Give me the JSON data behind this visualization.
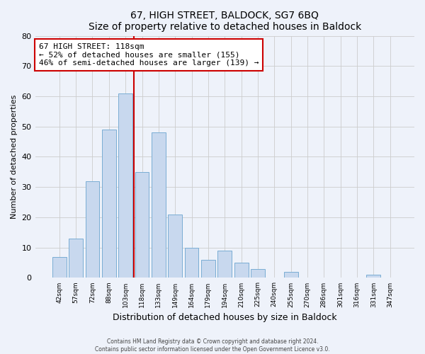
{
  "title": "67, HIGH STREET, BALDOCK, SG7 6BQ",
  "subtitle": "Size of property relative to detached houses in Baldock",
  "xlabel": "Distribution of detached houses by size in Baldock",
  "ylabel": "Number of detached properties",
  "bar_labels": [
    "42sqm",
    "57sqm",
    "72sqm",
    "88sqm",
    "103sqm",
    "118sqm",
    "133sqm",
    "149sqm",
    "164sqm",
    "179sqm",
    "194sqm",
    "210sqm",
    "225sqm",
    "240sqm",
    "255sqm",
    "270sqm",
    "286sqm",
    "301sqm",
    "316sqm",
    "331sqm",
    "347sqm"
  ],
  "bar_values": [
    7,
    13,
    32,
    49,
    61,
    35,
    48,
    21,
    10,
    6,
    9,
    5,
    3,
    0,
    2,
    0,
    0,
    0,
    0,
    1,
    0
  ],
  "bar_color": "#c8d8ee",
  "bar_edge_color": "#7aadd4",
  "vline_color": "#cc0000",
  "vline_x": 4.5,
  "annotation_text_line1": "67 HIGH STREET: 118sqm",
  "annotation_text_line2": "← 52% of detached houses are smaller (155)",
  "annotation_text_line3": "46% of semi-detached houses are larger (139) →",
  "annotation_box_color": "#ffffff",
  "annotation_box_edge_color": "#cc0000",
  "ylim": [
    0,
    80
  ],
  "yticks": [
    0,
    10,
    20,
    30,
    40,
    50,
    60,
    70,
    80
  ],
  "grid_color": "#cccccc",
  "background_color": "#eef2fa",
  "plot_bg_color": "#eef2fa",
  "footer_line1": "Contains HM Land Registry data © Crown copyright and database right 2024.",
  "footer_line2": "Contains public sector information licensed under the Open Government Licence v3.0."
}
